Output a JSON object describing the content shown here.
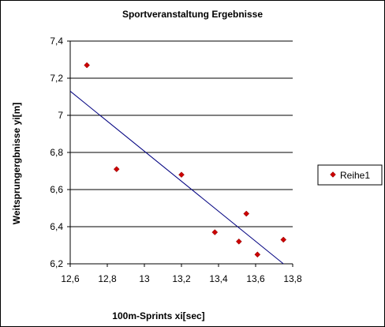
{
  "chart_data": {
    "type": "scatter",
    "title": "Sportveranstaltung Ergebnisse",
    "xlabel": "100m-Sprints xi[sec]",
    "ylabel": "Weitsprungergbnisse yi[m]",
    "xlim": [
      12.6,
      13.8
    ],
    "ylim": [
      6.2,
      7.4
    ],
    "x_ticks": [
      12.6,
      12.8,
      13.0,
      13.2,
      13.4,
      13.6,
      13.8
    ],
    "x_tick_labels": [
      "12,6",
      "12,8",
      "13",
      "13,2",
      "13,4",
      "13,6",
      "13,8"
    ],
    "y_ticks": [
      6.2,
      6.4,
      6.6,
      6.8,
      7.0,
      7.2,
      7.4
    ],
    "y_tick_labels": [
      "6,2",
      "6,4",
      "6,6",
      "6,8",
      "7",
      "7,2",
      "7,4"
    ],
    "grid": "horizontal",
    "legend_position": "right",
    "series": [
      {
        "name": "Reihe1",
        "color": "#cc0000",
        "marker": "diamond",
        "points": [
          {
            "x": 12.69,
            "y": 7.27
          },
          {
            "x": 12.85,
            "y": 6.71
          },
          {
            "x": 13.2,
            "y": 6.68
          },
          {
            "x": 13.38,
            "y": 6.37
          },
          {
            "x": 13.51,
            "y": 6.32
          },
          {
            "x": 13.55,
            "y": 6.47
          },
          {
            "x": 13.61,
            "y": 6.25
          },
          {
            "x": 13.75,
            "y": 6.33
          }
        ]
      }
    ],
    "trendline": {
      "color": "#000080",
      "from": {
        "x": 12.6,
        "y": 7.13
      },
      "to": {
        "x": 13.75,
        "y": 6.2
      }
    }
  }
}
